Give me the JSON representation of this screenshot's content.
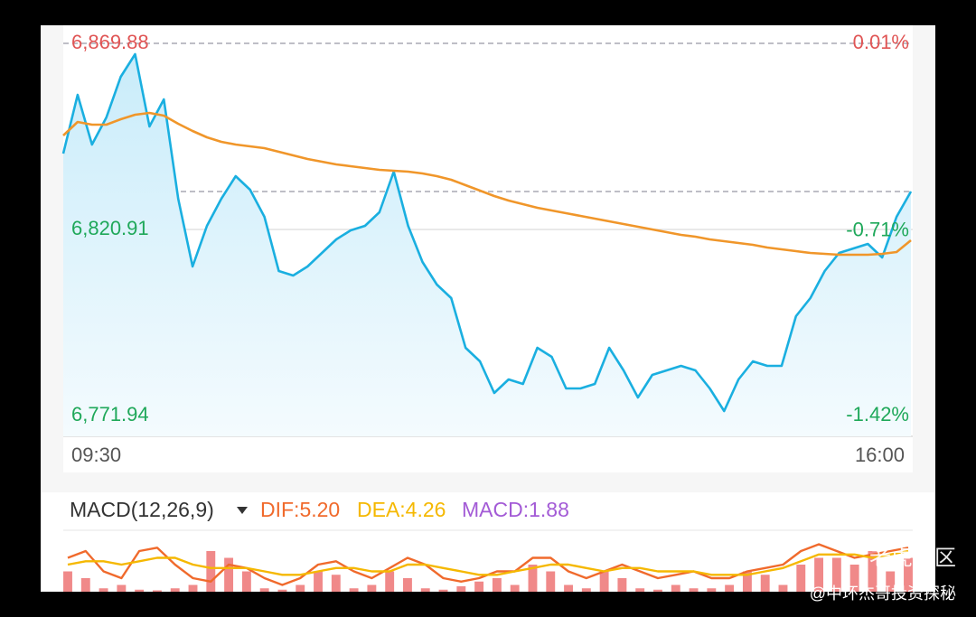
{
  "chart_data": [
    {
      "type": "line",
      "categories": [
        "09:30",
        null,
        null,
        null,
        null,
        null,
        null,
        null,
        null,
        null,
        null,
        null,
        null,
        null,
        null,
        null,
        null,
        null,
        null,
        null,
        null,
        null,
        null,
        null,
        null,
        null,
        null,
        null,
        null,
        null,
        null,
        null,
        null,
        null,
        null,
        null,
        null,
        null,
        null,
        null,
        null,
        null,
        null,
        null,
        null,
        null,
        null,
        null,
        null,
        null,
        null,
        null,
        null,
        null,
        null,
        null,
        null,
        null,
        null,
        "16:00"
      ],
      "series": [
        {
          "color": "#1aafe0",
          "fill": "#d3effb",
          "values": [
            6840.88,
            6856.33,
            6843.26,
            6850.39,
            6861.08,
            6867.03,
            6848.01,
            6855.14,
            6828.99,
            6811.16,
            6821.86,
            6828.99,
            6834.94,
            6831.37,
            6824.24,
            6809.97,
            6808.79,
            6811.16,
            6814.73,
            6818.29,
            6820.67,
            6821.86,
            6825.43,
            6836.12,
            6821.86,
            6812.35,
            6806.41,
            6802.84,
            6789.77,
            6786.2,
            6777.88,
            6781.45,
            6780.26,
            6789.77,
            6787.39,
            6779.07,
            6779.07,
            6780.26,
            6789.77,
            6783.83,
            6776.69,
            6782.64,
            6783.83,
            6785.01,
            6783.83,
            6779.07,
            6773.13,
            6781.45,
            6786.2,
            6785.01,
            6785.01,
            6798.09,
            6802.84,
            6809.97,
            6814.73,
            6815.92,
            6817.11,
            6813.54,
            6824.24,
            6830.89
          ]
        },
        {
          "color": "#f0962a",
          "values": [
            6845.63,
            6849.2,
            6848.49,
            6848.49,
            6849.91,
            6851.1,
            6851.58,
            6850.86,
            6848.72,
            6846.82,
            6845.16,
            6843.97,
            6843.26,
            6842.78,
            6842.3,
            6841.35,
            6840.4,
            6839.45,
            6838.74,
            6838.03,
            6837.55,
            6837.07,
            6836.6,
            6836.36,
            6836.12,
            6835.65,
            6834.94,
            6833.98,
            6832.56,
            6831.13,
            6829.71,
            6828.52,
            6827.57,
            6826.61,
            6825.9,
            6825.19,
            6824.48,
            6823.76,
            6823.05,
            6822.34,
            6821.62,
            6820.91,
            6820.2,
            6819.48,
            6819.01,
            6818.29,
            6817.82,
            6817.34,
            6816.87,
            6816.15,
            6815.68,
            6815.2,
            6814.73,
            6814.49,
            6814.25,
            6814.25,
            6814.25,
            6814.49,
            6814.97,
            6818.06
          ]
        }
      ],
      "ylim": [
        6771.94,
        6869.88
      ],
      "yticks": [
        {
          "value": 6869.88,
          "label": "6,869.88"
        },
        {
          "value": 6820.91,
          "label": "6,820.91"
        },
        {
          "value": 6771.94,
          "label": "6,771.94"
        }
      ],
      "y2lim": [
        -1.42,
        0.01
      ],
      "y2ticks": [
        {
          "value": 0.01,
          "label": "0.01%"
        },
        {
          "value": -0.71,
          "label": "-0.71%"
        },
        {
          "value": -1.42,
          "label": "-1.42%"
        }
      ],
      "grid_styles": [
        "dashed",
        "solid",
        "none"
      ],
      "reference_lines": [
        6830.89
      ],
      "up_color": "#e05555",
      "down_color": "#1fa85a"
    },
    {
      "type": "macd",
      "title": "MACD(12,26,9)",
      "series": [
        {
          "name": "DIF:5.20",
          "color": "#f06a2c",
          "values": [
            5,
            6,
            3,
            2,
            6,
            6.5,
            4,
            2,
            1.5,
            4,
            3.5,
            2,
            1,
            2,
            4,
            4.5,
            3,
            2,
            3.5,
            5,
            4,
            2,
            1.5,
            2,
            3,
            3,
            5,
            5,
            3,
            2,
            3,
            4,
            3,
            2,
            2.5,
            3,
            2,
            2,
            3,
            3.5,
            4,
            6,
            7,
            6,
            5,
            5.5,
            6,
            6.5
          ]
        },
        {
          "name": "DEA:4.26",
          "color": "#f5b800",
          "values": [
            4,
            4.5,
            4.5,
            4,
            4.5,
            5,
            5,
            4,
            3.5,
            3.5,
            3.5,
            3,
            2.5,
            2.5,
            3,
            3.5,
            3.5,
            3,
            3,
            4,
            4,
            3.5,
            3,
            2.5,
            2.5,
            3,
            3.5,
            4,
            4,
            3.5,
            3,
            3.5,
            3.5,
            3,
            3,
            3,
            2.5,
            2.5,
            2.5,
            3,
            3.5,
            4.5,
            5.5,
            5.5,
            5.5,
            5,
            5.5,
            6
          ]
        },
        {
          "name": "MACD:1.88",
          "color": "#a35bd6",
          "bar_color": "#ec6b6b",
          "values": [
            3,
            2,
            0.5,
            1,
            0.3,
            0.2,
            0.5,
            1,
            6,
            5,
            3,
            0.5,
            0.3,
            1,
            3,
            2.5,
            0.5,
            1,
            3,
            2,
            0.5,
            0.3,
            0.8,
            1.5,
            2,
            1,
            4,
            3,
            1,
            0.5,
            3,
            2,
            0.5,
            0.3,
            1,
            0.5,
            0.5,
            1,
            3,
            2.5,
            1,
            4,
            5,
            5,
            4,
            6,
            3,
            5
          ]
        }
      ],
      "ylim": [
        0,
        8
      ]
    }
  ],
  "watermark": {
    "brand": "老虎社区",
    "author": "@中环杰哥投资探秘"
  }
}
